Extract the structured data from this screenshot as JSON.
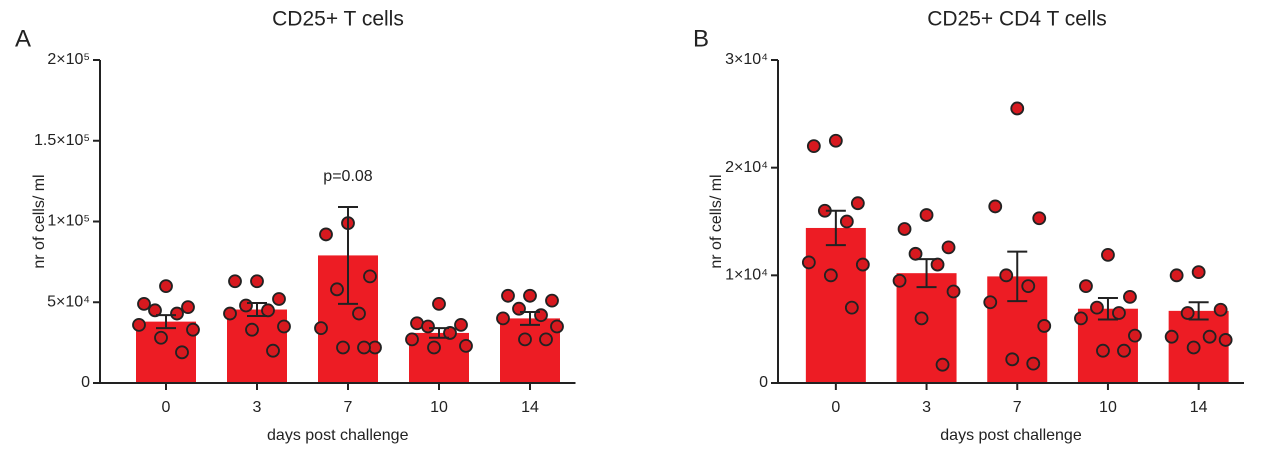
{
  "chart_data": [
    {
      "type": "bar",
      "panel_label": "A",
      "title": "CD25+ T cells",
      "xlabel": "days post challenge",
      "ylabel": "nr of cells/ ml",
      "categories": [
        "0",
        "3",
        "7",
        "10",
        "14"
      ],
      "values": [
        38000,
        45500,
        79000,
        31000,
        40000
      ],
      "errors": [
        4000,
        4000,
        30000,
        3000,
        4000
      ],
      "points": [
        [
          60000,
          49000,
          47000,
          45000,
          43000,
          36000,
          33000,
          28000,
          19000
        ],
        [
          63000,
          63000,
          52000,
          48000,
          45000,
          43000,
          35000,
          33000,
          20000
        ],
        [
          99000,
          92000,
          66000,
          58000,
          43000,
          34000,
          22000,
          22000,
          22000
        ],
        [
          49000,
          37000,
          36000,
          35000,
          31000,
          27000,
          23000,
          22000
        ],
        [
          54000,
          54000,
          51000,
          46000,
          42000,
          40000,
          35000,
          27000,
          27000
        ]
      ],
      "annotations": [
        {
          "text": "p=0.08",
          "x": "7"
        }
      ],
      "color": "#ed1c24",
      "point_color": "#d7191f",
      "ylim": [
        0,
        200000
      ],
      "yticks": [
        0,
        {
          "value": 50000,
          "label": "5×10⁴"
        },
        {
          "value": 100000,
          "label": "1×10⁵"
        },
        {
          "value": 150000,
          "label": "1.5×10⁵"
        },
        {
          "value": 200000,
          "label": "2×10⁵"
        }
      ]
    },
    {
      "type": "bar",
      "panel_label": "B",
      "title": "CD25+ CD4 T cells",
      "xlabel": "days post challenge",
      "ylabel": "nr of cells/ ml",
      "categories": [
        "0",
        "3",
        "7",
        "10",
        "14"
      ],
      "values": [
        14400,
        10200,
        9900,
        6900,
        6700
      ],
      "errors": [
        1600,
        1300,
        2300,
        1000,
        800
      ],
      "points": [
        [
          22500,
          22000,
          16700,
          16000,
          15000,
          11200,
          11000,
          10000,
          7000
        ],
        [
          15600,
          14300,
          12600,
          12000,
          11000,
          9500,
          8500,
          6000,
          1700
        ],
        [
          25500,
          16400,
          15300,
          10000,
          9000,
          7500,
          5300,
          2200,
          1800
        ],
        [
          11900,
          9000,
          8000,
          7000,
          6500,
          6000,
          4400,
          3000,
          3000
        ],
        [
          10300,
          10000,
          6800,
          6500,
          4300,
          4300,
          4000,
          3300
        ]
      ],
      "annotations": [],
      "color": "#ed1c24",
      "point_color": "#d7191f",
      "ylim": [
        0,
        30000
      ],
      "yticks": [
        0,
        {
          "value": 10000,
          "label": "1×10⁴"
        },
        {
          "value": 20000,
          "label": "2×10⁴"
        },
        {
          "value": 30000,
          "label": "3×10⁴"
        }
      ]
    }
  ]
}
